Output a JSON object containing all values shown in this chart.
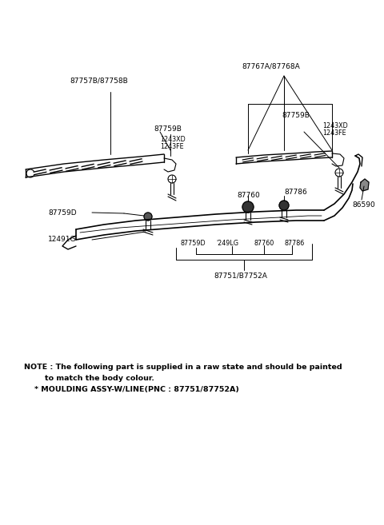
{
  "bg_color": "#ffffff",
  "line_color": "#000000",
  "text_color": "#000000",
  "fig_width": 4.8,
  "fig_height": 6.57,
  "dpi": 100,
  "note_line1": "NOTE : The following part is supplied in a raw state and should be painted",
  "note_line2": "        to match the body colour.",
  "note_line3": "    * MOULDING ASSY-W/LINE(PNC : 87751/87752A)"
}
